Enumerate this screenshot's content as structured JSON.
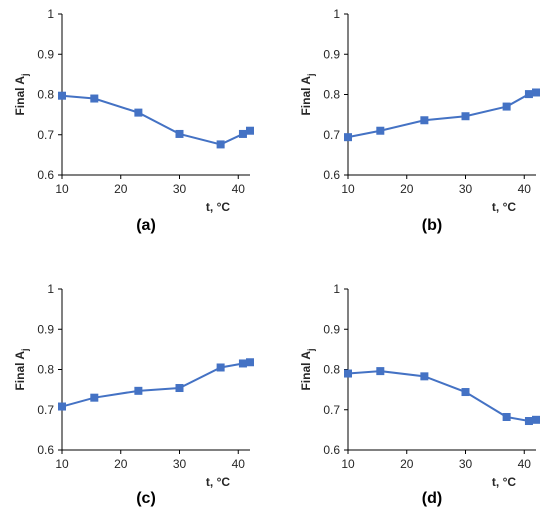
{
  "colors": {
    "series": "#4472C4",
    "axis": "#000000",
    "text": "#262626"
  },
  "chart_data": [
    {
      "type": "line",
      "panel_label": "(a)",
      "ylabel": "Final A",
      "ylabel_subscript": "j",
      "xlabel": "t, °C",
      "xlim": [
        10,
        42
      ],
      "ylim": [
        0.6,
        1
      ],
      "x_ticks": [
        10,
        20,
        30,
        40
      ],
      "y_ticks": [
        0.6,
        0.7,
        0.8,
        0.9,
        1
      ],
      "y_tick_labels": [
        "0.6",
        "0.7",
        "0.8",
        "0.9",
        "1"
      ],
      "grid": false,
      "series": [
        {
          "x": [
            10,
            15.5,
            23,
            30,
            37,
            40.8,
            42
          ],
          "y": [
            0.797,
            0.79,
            0.755,
            0.702,
            0.676,
            0.702,
            0.71
          ]
        }
      ]
    },
    {
      "type": "line",
      "panel_label": "(b)",
      "ylabel": "Final A",
      "ylabel_subscript": "j",
      "xlabel": "t, °C",
      "xlim": [
        10,
        42
      ],
      "ylim": [
        0.6,
        1
      ],
      "x_ticks": [
        10,
        20,
        30,
        40
      ],
      "y_ticks": [
        0.6,
        0.7,
        0.8,
        0.9,
        1
      ],
      "y_tick_labels": [
        "0.6",
        "0.7",
        "0.8",
        "0.9",
        "1"
      ],
      "grid": false,
      "series": [
        {
          "x": [
            10,
            15.5,
            23,
            30,
            37,
            40.8,
            42
          ],
          "y": [
            0.694,
            0.71,
            0.736,
            0.746,
            0.77,
            0.801,
            0.805
          ]
        }
      ]
    },
    {
      "type": "line",
      "panel_label": "(c)",
      "ylabel": "Final A",
      "ylabel_subscript": "j",
      "xlabel": "t, °C",
      "xlim": [
        10,
        42
      ],
      "ylim": [
        0.6,
        1
      ],
      "x_ticks": [
        10,
        20,
        30,
        40
      ],
      "y_ticks": [
        0.6,
        0.7,
        0.8,
        0.9,
        1
      ],
      "y_tick_labels": [
        "0.6",
        "0.7",
        "0.8",
        "0.9",
        "1"
      ],
      "grid": false,
      "series": [
        {
          "x": [
            10,
            15.5,
            23,
            30,
            37,
            40.8,
            42
          ],
          "y": [
            0.708,
            0.73,
            0.747,
            0.754,
            0.805,
            0.815,
            0.818
          ]
        }
      ]
    },
    {
      "type": "line",
      "panel_label": "(d)",
      "ylabel": "Final A",
      "ylabel_subscript": "j",
      "xlabel": "t, °C",
      "xlim": [
        10,
        42
      ],
      "ylim": [
        0.6,
        1
      ],
      "x_ticks": [
        10,
        20,
        30,
        40
      ],
      "y_ticks": [
        0.6,
        0.7,
        0.8,
        0.9,
        1
      ],
      "y_tick_labels": [
        "0.6",
        "0.7",
        "0.8",
        "0.9",
        "1"
      ],
      "grid": false,
      "series": [
        {
          "x": [
            10,
            15.5,
            23,
            30,
            37,
            40.8,
            42
          ],
          "y": [
            0.79,
            0.796,
            0.783,
            0.744,
            0.682,
            0.672,
            0.675
          ]
        }
      ]
    }
  ]
}
